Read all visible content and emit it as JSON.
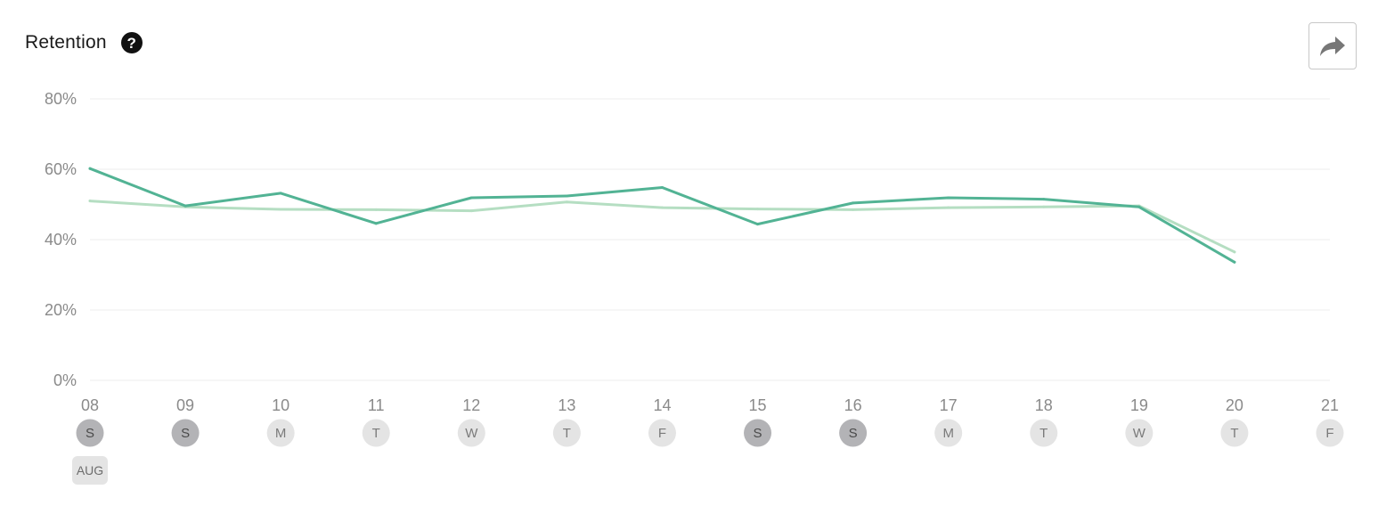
{
  "header": {
    "title": "Retention",
    "help_icon": "question-circle-icon",
    "share_icon": "share-arrow-icon"
  },
  "colors": {
    "series_primary": "#52b394",
    "series_secondary": "#b5dec2",
    "grid": "#eeeeee",
    "weekend_badge": "#b3b3b6",
    "weekday_badge": "#e4e4e4"
  },
  "chart_data": {
    "type": "line",
    "x": [
      "08",
      "09",
      "10",
      "11",
      "12",
      "13",
      "14",
      "15",
      "16",
      "17",
      "18",
      "19",
      "20",
      "21"
    ],
    "weekdays": [
      "S",
      "S",
      "M",
      "T",
      "W",
      "T",
      "F",
      "S",
      "S",
      "M",
      "T",
      "W",
      "T",
      "F"
    ],
    "weekend": [
      true,
      true,
      false,
      false,
      false,
      false,
      false,
      true,
      true,
      false,
      false,
      false,
      false,
      false
    ],
    "month_label": "AUG",
    "y_ticks": [
      "0%",
      "20%",
      "40%",
      "60%",
      "80%"
    ],
    "ylim": [
      0,
      80
    ],
    "grid": true,
    "series": [
      {
        "values": [
          60.2,
          49.6,
          53.2,
          44.6,
          51.9,
          52.4,
          54.8,
          44.4,
          50.4,
          51.9,
          51.5,
          49.3,
          33.6,
          null
        ]
      },
      {
        "values": [
          51.0,
          49.3,
          48.6,
          48.5,
          48.2,
          50.7,
          49.1,
          48.7,
          48.5,
          49.1,
          49.3,
          49.6,
          36.5,
          null
        ]
      }
    ]
  }
}
